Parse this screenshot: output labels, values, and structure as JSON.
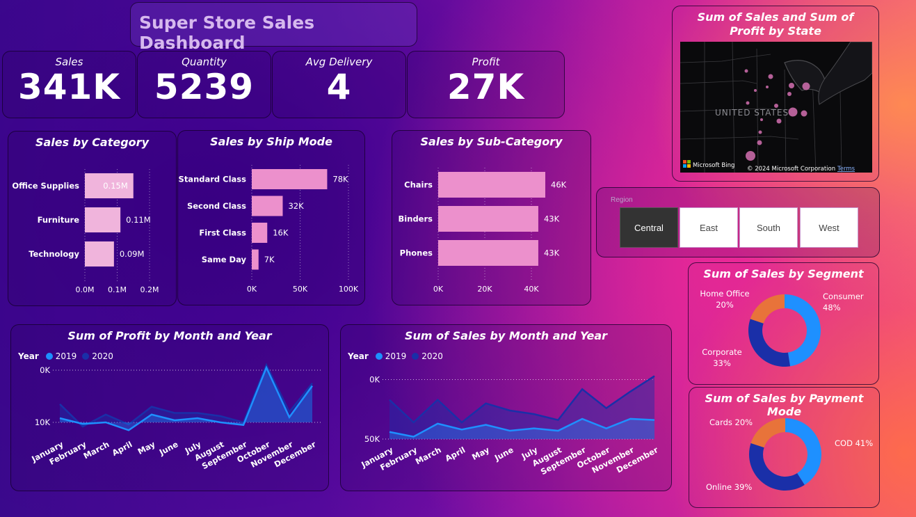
{
  "dashboard": {
    "title": "Super Store Sales Dashboard"
  },
  "kpis": [
    {
      "label": "Sales",
      "value": "341K"
    },
    {
      "label": "Quantity",
      "value": "5239"
    },
    {
      "label": "Avg Delivery",
      "value": "4"
    },
    {
      "label": "Profit",
      "value": "27K"
    }
  ],
  "map": {
    "title": "Sum of Sales and Sum of Profit by State",
    "country_label": "UNITED STATES",
    "bing": "Microsoft Bing",
    "copyright": "© 2024 Microsoft Corporation",
    "terms": "Terms"
  },
  "region_slicer": {
    "title": "Region",
    "options": [
      "Central",
      "East",
      "South",
      "West"
    ],
    "selected": "Central"
  },
  "colors": {
    "bar_pink": "#f0b4dc",
    "bar_pink2": "#ec90cc",
    "series_2019": "#1e90ff",
    "series_2020": "#1a2fa8",
    "donut_orange": "#e8733a",
    "slicer_selected": "#333333"
  },
  "chart_data": [
    {
      "type": "bar",
      "title": "Sales by Category",
      "categories": [
        "Office Supplies",
        "Furniture",
        "Technology"
      ],
      "values": [
        0.15,
        0.11,
        0.09
      ],
      "data_labels": [
        "0.15M",
        "0.11M",
        "0.09M"
      ],
      "xlim": [
        0,
        0.2
      ],
      "x_ticks": [
        "0.0M",
        "0.1M",
        "0.2M"
      ],
      "orientation": "horizontal"
    },
    {
      "type": "bar",
      "title": "Sales by Ship Mode",
      "categories": [
        "Standard Class",
        "Second Class",
        "First Class",
        "Same Day"
      ],
      "values": [
        78,
        32,
        16,
        7
      ],
      "data_labels": [
        "78K",
        "32K",
        "16K",
        "7K"
      ],
      "xlim": [
        0,
        100
      ],
      "x_ticks": [
        "0K",
        "50K",
        "100K"
      ],
      "orientation": "horizontal"
    },
    {
      "type": "bar",
      "title": "Sales by Sub-Category",
      "categories": [
        "Chairs",
        "Binders",
        "Phones"
      ],
      "values": [
        46,
        43,
        43
      ],
      "data_labels": [
        "46K",
        "43K",
        "43K"
      ],
      "xlim": [
        0,
        46
      ],
      "x_ticks": [
        "0K",
        "20K",
        "40K"
      ],
      "orientation": "horizontal"
    },
    {
      "type": "pie",
      "title": "Sum of Sales by Segment",
      "labels": [
        "Consumer",
        "Corporate",
        "Home Office"
      ],
      "values": [
        48,
        33,
        20
      ],
      "value_labels": [
        "48%",
        "33%",
        "20%"
      ],
      "colors": [
        "#1e90ff",
        "#1a2fa8",
        "#e8733a"
      ]
    },
    {
      "type": "pie",
      "title": "Sum of Sales by Payment Mode",
      "labels": [
        "COD",
        "Online",
        "Cards"
      ],
      "values": [
        41,
        39,
        20
      ],
      "value_labels": [
        "COD 41%",
        "Online 39%",
        "Cards 20%"
      ],
      "colors": [
        "#1e90ff",
        "#1a2fa8",
        "#e8733a"
      ]
    },
    {
      "type": "area",
      "title": "Sum of Profit by Month and Year",
      "legend_title": "Year",
      "categories": [
        "January",
        "February",
        "March",
        "April",
        "May",
        "June",
        "July",
        "August",
        "September",
        "October",
        "November",
        "December"
      ],
      "series": [
        {
          "name": "2019",
          "values": [
            800,
            -300,
            0,
            -1500,
            1500,
            400,
            800,
            0,
            -500,
            10500,
            1000,
            7000
          ]
        },
        {
          "name": "2020",
          "values": [
            3500,
            -800,
            1500,
            -400,
            3000,
            1800,
            1800,
            1200,
            0,
            11000,
            2000,
            7500
          ]
        }
      ],
      "y_ticks": [
        "0K",
        "10K"
      ],
      "ylim": [
        -2000,
        12000
      ]
    },
    {
      "type": "area",
      "title": "Sum of Sales by Month and Year",
      "legend_title": "Year",
      "categories": [
        "January",
        "February",
        "March",
        "April",
        "May",
        "June",
        "July",
        "August",
        "September",
        "October",
        "November",
        "December"
      ],
      "series": [
        {
          "name": "2019",
          "values": [
            6000,
            2000,
            13000,
            8000,
            12000,
            7000,
            9000,
            7000,
            17000,
            9000,
            17000,
            16000
          ]
        },
        {
          "name": "2020",
          "values": [
            33000,
            14000,
            33000,
            14000,
            30000,
            24000,
            21000,
            16000,
            42000,
            26000,
            40000,
            53000
          ]
        }
      ],
      "y_ticks": [
        "0K",
        "50K"
      ],
      "ylim": [
        0,
        55000
      ]
    }
  ]
}
